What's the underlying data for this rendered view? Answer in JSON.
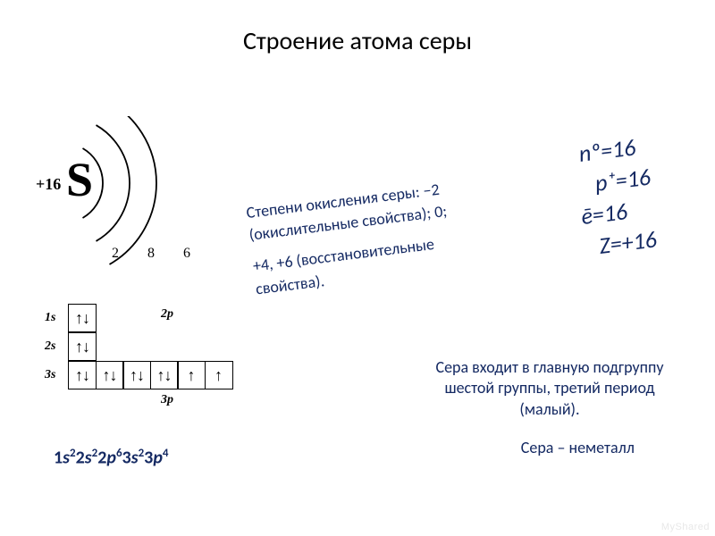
{
  "title": "Строение атома серы",
  "bohr": {
    "nucleus_charge": "+16",
    "symbol": "S",
    "shells": [
      2,
      8,
      6
    ],
    "shell_radii": [
      45,
      75,
      105
    ]
  },
  "orbital_diagram": {
    "rows": [
      {
        "label": "1s",
        "boxes": [
          {
            "fill": "pair"
          }
        ]
      },
      {
        "label": "2s",
        "boxes": [
          {
            "fill": "pair"
          }
        ]
      },
      {
        "label": "3s",
        "boxes": [
          {
            "fill": "pair"
          },
          {
            "fill": "pair"
          },
          {
            "fill": "pair"
          },
          {
            "fill": "pair"
          },
          {
            "fill": "up"
          },
          {
            "fill": "up"
          }
        ]
      }
    ],
    "label_2p": "2p",
    "label_3p": "3p"
  },
  "electron_config": {
    "parts": [
      {
        "base": "1",
        "orbital": "s",
        "sup": "2"
      },
      {
        "base": "2",
        "orbital": "s",
        "sup": "2"
      },
      {
        "base": "2",
        "orbital": "p",
        "sup": "6"
      },
      {
        "base": "3",
        "orbital": "s",
        "sup": "2"
      },
      {
        "base": "3",
        "orbital": "p",
        "sup": "4"
      }
    ]
  },
  "oxidation": {
    "line1": "Степени окисления серы: −2 (окислительные свойства); 0;",
    "line2": "+4, +6 (восстановительные свойства)."
  },
  "props": {
    "n": "nº=16",
    "p": "p⁺=16",
    "e": "ē=16",
    "z": "Z=+16"
  },
  "group_text": "Сера входит в главную подгруппу шестой группы, третий период  (малый).",
  "nonmetal": "Сера – неметалл",
  "watermark": "MyShared",
  "colors": {
    "text_main": "#152a63",
    "black": "#000000",
    "bg": "#ffffff"
  }
}
